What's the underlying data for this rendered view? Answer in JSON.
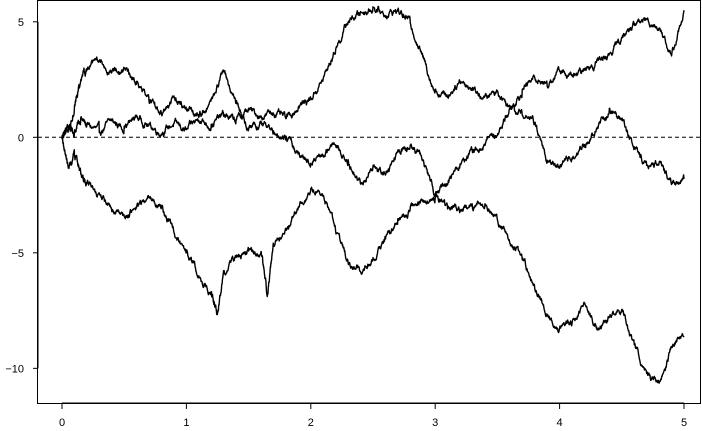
{
  "chart_data": {
    "type": "line",
    "title": "",
    "xlabel": "",
    "ylabel": "",
    "xlim": [
      0,
      5
    ],
    "ylim": [
      -11.5,
      5.9
    ],
    "grid": false,
    "legend": "none",
    "reference_line": {
      "y": 0,
      "style": "dashed"
    },
    "x_ticks": [
      "0",
      "1",
      "2",
      "3",
      "4",
      "5"
    ],
    "y_ticks": [
      "5",
      "0",
      "−5",
      "−10"
    ],
    "x_tick_values": [
      0,
      1,
      2,
      3,
      4,
      5
    ],
    "y_tick_values": [
      5,
      0,
      -5,
      -10
    ],
    "series": [
      {
        "x": [
          0,
          0.05,
          0.1,
          0.15,
          0.2,
          0.3,
          0.4,
          0.5,
          0.6,
          0.7,
          0.8,
          0.9,
          1.0,
          1.1,
          1.2,
          1.3,
          1.4,
          1.5,
          1.6,
          1.7,
          1.8,
          1.9,
          2.0,
          2.1,
          2.2,
          2.3,
          2.4,
          2.5,
          2.6,
          2.7,
          2.8,
          2.9,
          3.0,
          3.1,
          3.2,
          3.3,
          3.4,
          3.5,
          3.6,
          3.7,
          3.8,
          3.9,
          4.0,
          4.1,
          4.2,
          4.3,
          4.4,
          4.5,
          4.6,
          4.7,
          4.8,
          4.9,
          5.0
        ],
        "values": [
          0,
          0.5,
          0.2,
          0.8,
          0.5,
          0.3,
          0.7,
          0.4,
          0.9,
          0.5,
          0.2,
          0.6,
          0.3,
          0.8,
          0.5,
          1.0,
          0.7,
          1.2,
          0.9,
          1.1,
          0.8,
          1.3,
          1.7,
          2.5,
          3.8,
          5.0,
          5.4,
          5.6,
          5.3,
          5.5,
          5.0,
          3.5,
          2.0,
          1.8,
          2.5,
          2.1,
          1.7,
          2.0,
          1.3,
          2.0,
          2.6,
          2.3,
          2.9,
          2.6,
          2.9,
          3.3,
          3.6,
          4.3,
          4.9,
          5.1,
          4.8,
          3.5,
          5.5
        ]
      },
      {
        "x": [
          0,
          0.05,
          0.1,
          0.15,
          0.2,
          0.3,
          0.4,
          0.5,
          0.6,
          0.7,
          0.8,
          0.9,
          1.0,
          1.1,
          1.2,
          1.3,
          1.4,
          1.5,
          1.6,
          1.7,
          1.8,
          1.9,
          2.0,
          2.1,
          2.2,
          2.3,
          2.4,
          2.5,
          2.6,
          2.7,
          2.8,
          2.9,
          3.0,
          3.1,
          3.2,
          3.3,
          3.4,
          3.5,
          3.6,
          3.7,
          3.8,
          3.9,
          4.0,
          4.1,
          4.2,
          4.3,
          4.4,
          4.5,
          4.6,
          4.7,
          4.8,
          4.9,
          5.0
        ],
        "values": [
          0,
          0.3,
          1.3,
          2.4,
          2.9,
          3.3,
          2.8,
          2.9,
          2.4,
          1.6,
          1.0,
          1.8,
          1.2,
          0.9,
          1.6,
          2.8,
          1.5,
          0.3,
          0.6,
          0.2,
          0.0,
          -0.7,
          -1.2,
          -0.8,
          -0.3,
          -1.0,
          -2.0,
          -1.3,
          -1.6,
          -0.6,
          -0.4,
          -1.0,
          -2.5,
          -2.0,
          -1.2,
          -0.6,
          -0.3,
          0.1,
          1.3,
          1.0,
          0.6,
          -1.0,
          -1.3,
          -0.9,
          -0.4,
          0.3,
          1.2,
          0.8,
          -0.5,
          -1.2,
          -1.0,
          -2.0,
          -1.8
        ]
      },
      {
        "x": [
          0,
          0.05,
          0.1,
          0.15,
          0.2,
          0.3,
          0.4,
          0.5,
          0.6,
          0.7,
          0.8,
          0.9,
          1.0,
          1.1,
          1.2,
          1.25,
          1.3,
          1.4,
          1.5,
          1.6,
          1.65,
          1.7,
          1.8,
          1.9,
          2.0,
          2.1,
          2.2,
          2.3,
          2.4,
          2.5,
          2.6,
          2.7,
          2.8,
          2.9,
          3.0,
          3.1,
          3.2,
          3.3,
          3.4,
          3.5,
          3.6,
          3.7,
          3.8,
          3.9,
          4.0,
          4.1,
          4.2,
          4.3,
          4.4,
          4.5,
          4.6,
          4.7,
          4.8,
          4.9,
          5.0
        ],
        "values": [
          0,
          -1.3,
          -0.8,
          -1.5,
          -2.0,
          -2.5,
          -3.2,
          -3.5,
          -3.0,
          -2.6,
          -3.0,
          -4.1,
          -4.9,
          -6.0,
          -6.8,
          -7.6,
          -5.8,
          -5.2,
          -4.9,
          -5.0,
          -6.8,
          -4.6,
          -4.0,
          -3.0,
          -2.3,
          -2.6,
          -4.0,
          -5.5,
          -5.8,
          -5.3,
          -4.4,
          -3.6,
          -3.1,
          -2.7,
          -2.6,
          -3.1,
          -3.2,
          -3.0,
          -2.9,
          -3.6,
          -4.5,
          -5.2,
          -6.5,
          -7.6,
          -8.2,
          -8.1,
          -7.3,
          -8.3,
          -7.8,
          -7.4,
          -8.9,
          -10.3,
          -10.7,
          -9.1,
          -8.6
        ]
      }
    ]
  }
}
